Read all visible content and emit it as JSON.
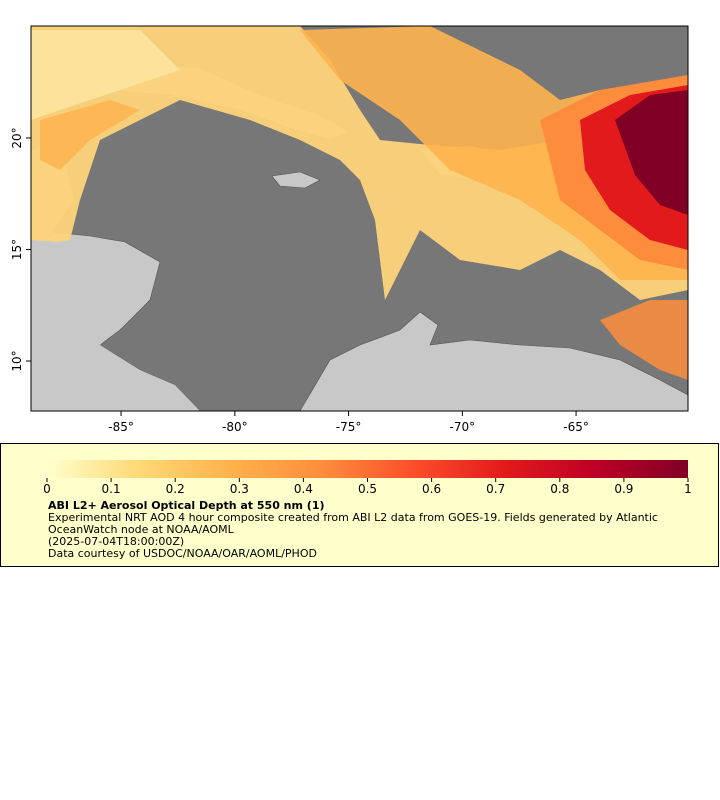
{
  "chart_data": {
    "type": "map",
    "title": "ABI L2+ Aerosol Optical Depth at 550 nm (1)",
    "description": "Experimental NRT AOD 4 hour composite created from ABI L2 data from GOES-19. Fields generated by Atlantic OceanWatch node at NOAA/AOML",
    "time": "(2025-07-04T18:00:00Z)",
    "credit": "Data courtesy of USDOC/NOAA/OAR/AOML/PHOD",
    "xlim": [
      -88.96,
      -60.08
    ],
    "ylim": [
      7.76,
      25.02
    ],
    "xticks": [
      {
        "value": -85,
        "label": "-85°"
      },
      {
        "value": -80,
        "label": "-80°"
      },
      {
        "value": -75,
        "label": "-75°"
      },
      {
        "value": -70,
        "label": "-70°"
      },
      {
        "value": -65,
        "label": "-65°"
      }
    ],
    "yticks": [
      {
        "value": 10,
        "label": "10°"
      },
      {
        "value": 15,
        "label": "15°"
      },
      {
        "value": 20,
        "label": "20°"
      }
    ],
    "colorbar": {
      "lim": [
        0,
        1
      ],
      "ticks": [
        0,
        0.1,
        0.2,
        0.3,
        0.4,
        0.5,
        0.6,
        0.7,
        0.8,
        0.9,
        1
      ],
      "colormap": [
        "#ffffcc",
        "#fed976",
        "#feb24c",
        "#fd8d3c",
        "#fc4e2a",
        "#e31a1c",
        "#bd0026",
        "#800026"
      ]
    }
  }
}
